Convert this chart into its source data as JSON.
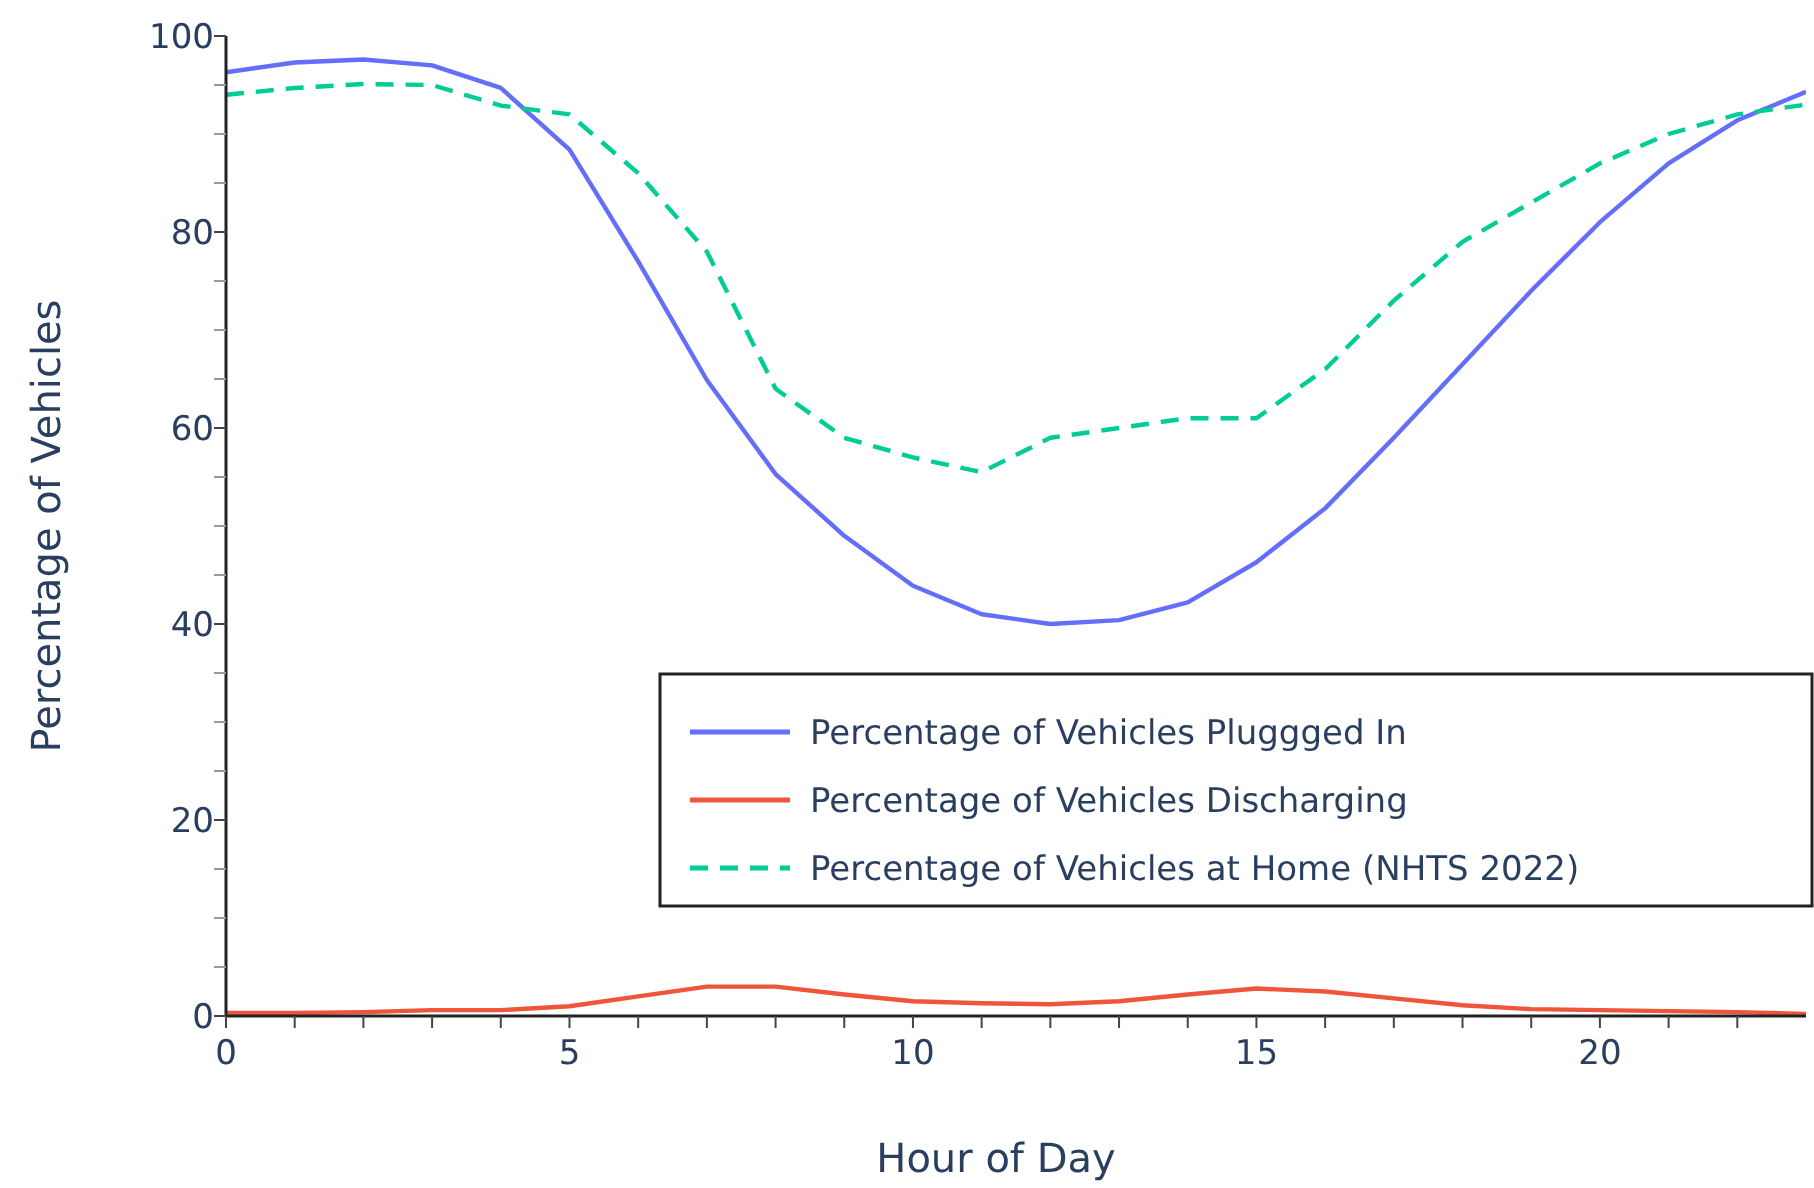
{
  "chart_data": {
    "type": "line",
    "xlabel": "Hour of Day",
    "ylabel": "Percentage of Vehicles",
    "x": [
      0,
      1,
      2,
      3,
      4,
      5,
      6,
      7,
      8,
      9,
      10,
      11,
      12,
      13,
      14,
      15,
      16,
      17,
      18,
      19,
      20,
      21,
      22,
      23
    ],
    "series": [
      {
        "name": "Percentage of Vehicles Pluggged In",
        "color": "#636efa",
        "line_style": "solid",
        "values": [
          96.3,
          97.3,
          97.6,
          97,
          94.7,
          88.4,
          77,
          64.9,
          55.3,
          49,
          43.9,
          41,
          40,
          40.4,
          42.2,
          46.3,
          51.8,
          59,
          66.5,
          74,
          81,
          87,
          91.4,
          94.3
        ]
      },
      {
        "name": "Percentage of Vehicles Discharging",
        "color": "#ef553b",
        "line_style": "solid",
        "values": [
          0.3,
          0.3,
          0.4,
          0.6,
          0.6,
          1,
          2,
          3,
          3,
          2.2,
          1.5,
          1.3,
          1.2,
          1.5,
          2.2,
          2.8,
          2.5,
          1.8,
          1.1,
          0.7,
          0.6,
          0.5,
          0.4,
          0.2
        ]
      },
      {
        "name": "Percentage of Vehicles at Home (NHTS 2022)",
        "color": "#00cc96",
        "line_style": "dashed",
        "values": [
          94,
          94.7,
          95.1,
          95,
          92.9,
          92,
          86,
          78,
          64,
          59,
          57,
          55.5,
          59,
          60,
          61,
          61,
          66,
          73,
          79,
          83,
          87,
          90,
          92,
          93
        ]
      }
    ],
    "xlim": [
      0,
      23
    ],
    "xticks": [
      0,
      {
        "value": 1,
        "label": null
      },
      {
        "value": 2,
        "label": null
      },
      {
        "value": 3,
        "label": null
      },
      {
        "value": 4,
        "label": null
      },
      5,
      {
        "value": 6,
        "label": null
      },
      {
        "value": 7,
        "label": null
      },
      {
        "value": 8,
        "label": null
      },
      {
        "value": 9,
        "label": null
      },
      10,
      {
        "value": 11,
        "label": null
      },
      {
        "value": 12,
        "label": null
      },
      {
        "value": 13,
        "label": null
      },
      {
        "value": 14,
        "label": null
      },
      15,
      {
        "value": 16,
        "label": null
      },
      {
        "value": 17,
        "label": null
      },
      {
        "value": 18,
        "label": null
      },
      {
        "value": 19,
        "label": null
      },
      20,
      {
        "value": 21,
        "label": null
      },
      {
        "value": 22,
        "label": null
      }
    ],
    "ylim": [
      0,
      100
    ],
    "yticks": [
      0,
      {
        "value": 5,
        "label": null
      },
      {
        "value": 10,
        "label": null
      },
      {
        "value": 15,
        "label": null
      },
      20,
      {
        "value": 25,
        "label": null
      },
      {
        "value": 30,
        "label": null
      },
      {
        "value": 35,
        "label": null
      },
      40,
      {
        "value": 45,
        "label": null
      },
      {
        "value": 50,
        "label": null
      },
      {
        "value": 55,
        "label": null
      },
      60,
      {
        "value": 65,
        "label": null
      },
      {
        "value": 70,
        "label": null
      },
      {
        "value": 75,
        "label": null
      },
      80,
      {
        "value": 85,
        "label": null
      },
      {
        "value": 90,
        "label": null
      },
      {
        "value": 95,
        "label": null
      },
      100
    ],
    "legend": "right",
    "grid": false,
    "marker": "none"
  }
}
